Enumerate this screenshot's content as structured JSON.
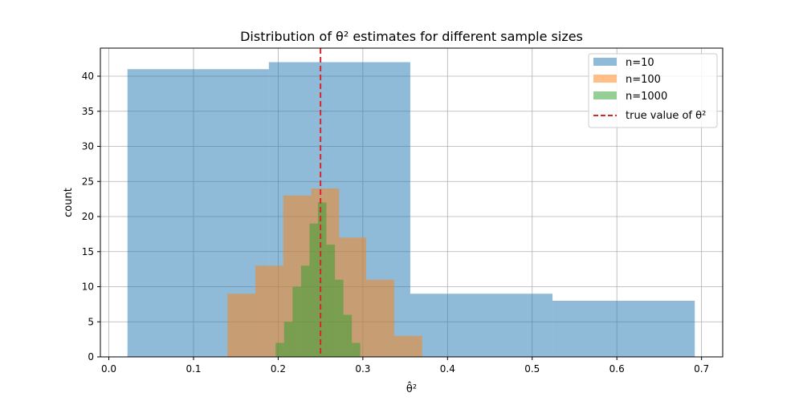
{
  "chart_data": {
    "type": "bar",
    "subtype": "overlaid-histogram",
    "title": "Distribution of θ² estimates for different sample sizes",
    "xlabel": "θ̂²",
    "ylabel": "count",
    "xlim": [
      -0.01,
      0.725
    ],
    "ylim": [
      0,
      44
    ],
    "xticks": [
      0.0,
      0.1,
      0.2,
      0.3,
      0.4,
      0.5,
      0.6,
      0.7
    ],
    "xtick_labels": [
      "0.0",
      "0.1",
      "0.2",
      "0.3",
      "0.4",
      "0.5",
      "0.6",
      "0.7"
    ],
    "yticks": [
      0,
      5,
      10,
      15,
      20,
      25,
      30,
      35,
      40
    ],
    "ytick_labels": [
      "0",
      "5",
      "10",
      "15",
      "20",
      "25",
      "30",
      "35",
      "40"
    ],
    "grid": true,
    "legend_position": "top-right",
    "series": [
      {
        "name": "n=10",
        "color": "#1f77b4",
        "opacity": 0.5,
        "bin_edges": [
          0.022,
          0.189,
          0.356,
          0.524,
          0.692
        ],
        "counts": [
          41,
          42,
          9,
          8
        ]
      },
      {
        "name": "n=100",
        "color": "#ff7f0e",
        "opacity": 0.5,
        "bin_edges": [
          0.14,
          0.173,
          0.206,
          0.239,
          0.272,
          0.304,
          0.337,
          0.37
        ],
        "counts": [
          9,
          13,
          23,
          24,
          17,
          11,
          3
        ]
      },
      {
        "name": "n=1000",
        "color": "#2ca02c",
        "opacity": 0.5,
        "bin_edges": [
          0.197,
          0.207,
          0.217,
          0.227,
          0.237,
          0.247,
          0.257,
          0.267,
          0.277,
          0.287,
          0.297
        ],
        "counts": [
          2,
          5,
          10,
          13,
          19,
          22,
          16,
          11,
          6,
          2
        ]
      }
    ],
    "reference_line": {
      "label": "true value of θ²",
      "x": 0.25,
      "color": "#d62728",
      "style": "dashed"
    }
  }
}
